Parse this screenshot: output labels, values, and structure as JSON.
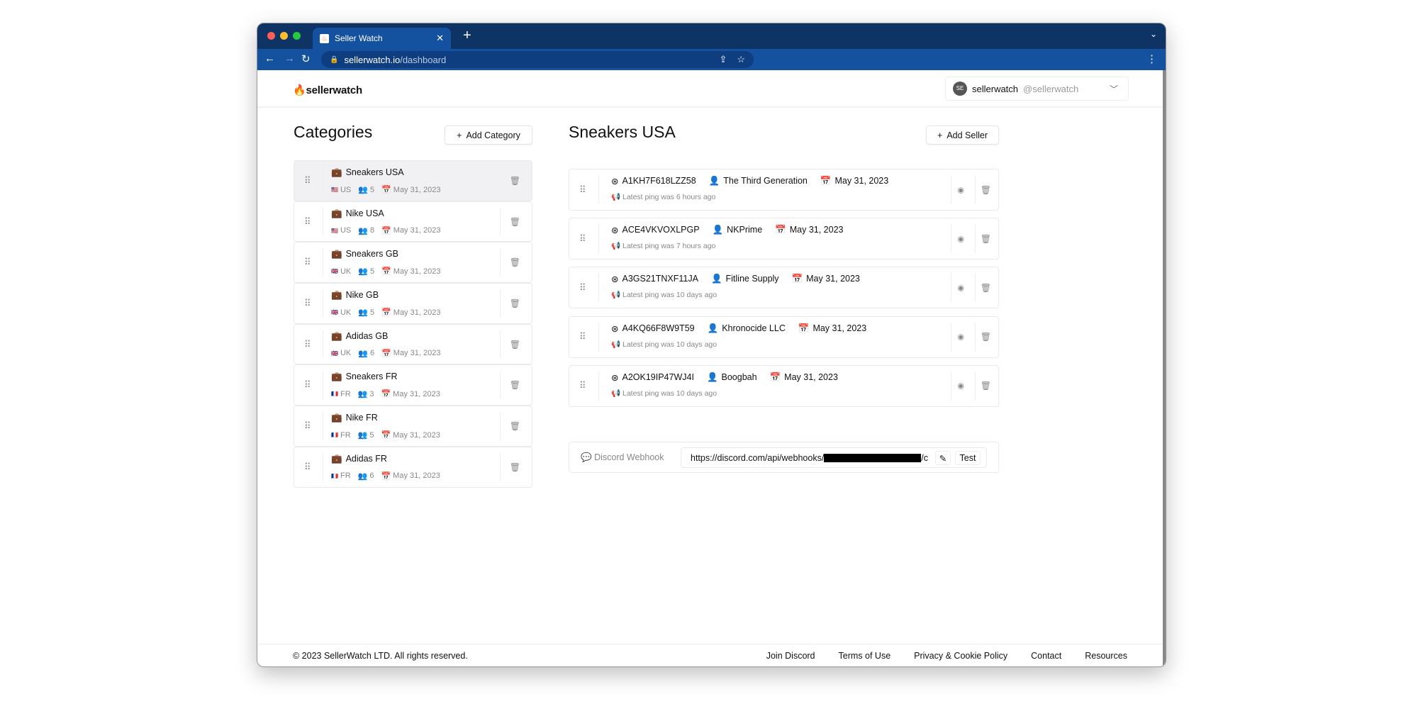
{
  "browser": {
    "tab_title": "Seller Watch",
    "url_domain": "sellerwatch.io",
    "url_path": "/dashboard"
  },
  "header": {
    "logo": "sellerwatch",
    "user_initials": "SE",
    "user_name": "sellerwatch",
    "user_handle": "@sellerwatch"
  },
  "categories": {
    "title": "Categories",
    "add_label": "Add Category",
    "items": [
      {
        "name": "Sneakers USA",
        "flag": "🇺🇸",
        "country": "US",
        "sellers": "5",
        "date": "May 31, 2023",
        "selected": true
      },
      {
        "name": "Nike USA",
        "flag": "🇺🇸",
        "country": "US",
        "sellers": "8",
        "date": "May 31, 2023"
      },
      {
        "name": "Sneakers GB",
        "flag": "🇬🇧",
        "country": "UK",
        "sellers": "5",
        "date": "May 31, 2023"
      },
      {
        "name": "Nike GB",
        "flag": "🇬🇧",
        "country": "UK",
        "sellers": "5",
        "date": "May 31, 2023"
      },
      {
        "name": "Adidas GB",
        "flag": "🇬🇧",
        "country": "UK",
        "sellers": "6",
        "date": "May 31, 2023"
      },
      {
        "name": "Sneakers FR",
        "flag": "🇫🇷",
        "country": "FR",
        "sellers": "3",
        "date": "May 31, 2023"
      },
      {
        "name": "Nike FR",
        "flag": "🇫🇷",
        "country": "FR",
        "sellers": "5",
        "date": "May 31, 2023"
      },
      {
        "name": "Adidas FR",
        "flag": "🇫🇷",
        "country": "FR",
        "sellers": "6",
        "date": "May 31, 2023"
      }
    ]
  },
  "sellers": {
    "title": "Sneakers USA",
    "add_label": "Add Seller",
    "items": [
      {
        "id": "A1KH7F618LZZ58",
        "name": "The Third Generation",
        "date": "May 31, 2023",
        "ping": "Latest ping was 6 hours ago"
      },
      {
        "id": "ACE4VKVOXLPGP",
        "name": "NKPrime",
        "date": "May 31, 2023",
        "ping": "Latest ping was 7 hours ago"
      },
      {
        "id": "A3GS21TNXF11JA",
        "name": "Fitline Supply",
        "date": "May 31, 2023",
        "ping": "Latest ping was 10 days ago"
      },
      {
        "id": "A4KQ66F8W9T59",
        "name": "Khronocide LLC",
        "date": "May 31, 2023",
        "ping": "Latest ping was 10 days ago"
      },
      {
        "id": "A2OK19IP47WJ4I",
        "name": "Boogbah",
        "date": "May 31, 2023",
        "ping": "Latest ping was 10 days ago"
      }
    ]
  },
  "webhook": {
    "label": "Discord Webhook",
    "url_prefix": "https://discord.com/api/webhooks/",
    "url_suffix": "/c",
    "test_label": "Test"
  },
  "footer": {
    "copyright": "© 2023 SellerWatch LTD. All rights reserved.",
    "links": [
      "Join Discord",
      "Terms of Use",
      "Privacy & Cookie Policy",
      "Contact",
      "Resources"
    ]
  }
}
